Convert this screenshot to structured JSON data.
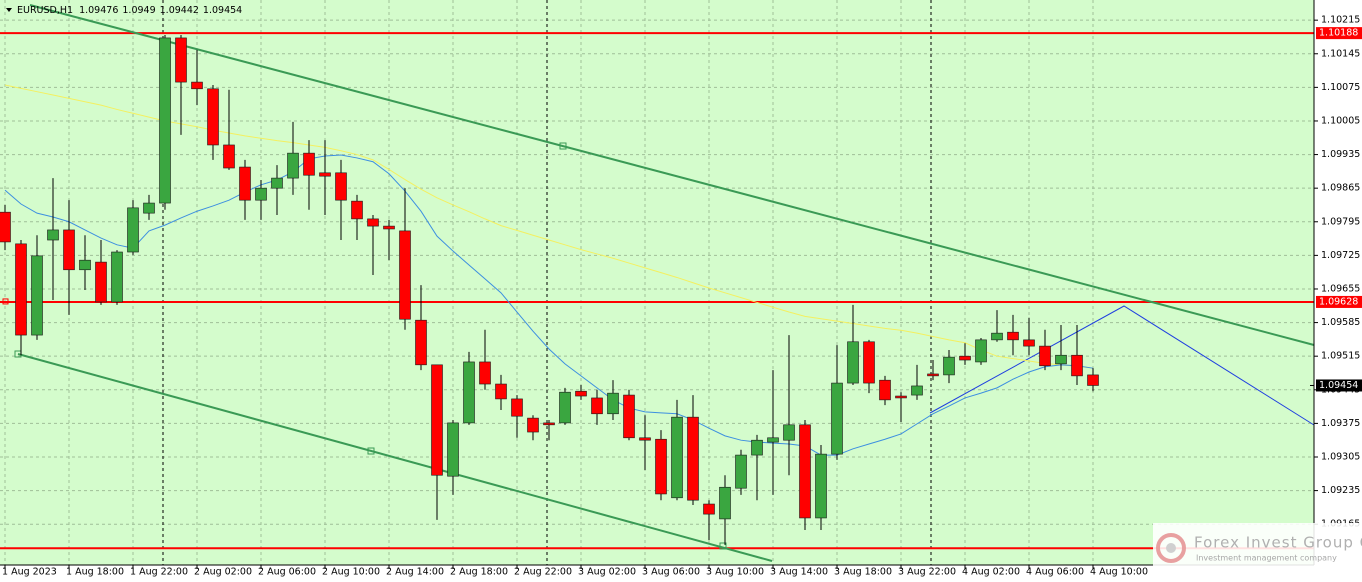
{
  "chart_data": {
    "type": "candlestick",
    "title": "EURUSD,H1",
    "categories": [
      "1 Aug 2023",
      null,
      null,
      null,
      "1 Aug 18:00",
      null,
      null,
      null,
      "1 Aug 22:00",
      null,
      null,
      null,
      "2 Aug 02:00",
      null,
      null,
      null,
      "2 Aug 06:00",
      null,
      null,
      null,
      "2 Aug 10:00",
      null,
      null,
      null,
      "2 Aug 14:00",
      null,
      null,
      null,
      "2 Aug 18:00",
      null,
      null,
      null,
      "2 Aug 22:00",
      null,
      null,
      null,
      "3 Aug 02:00",
      null,
      null,
      null,
      "3 Aug 06:00",
      null,
      null,
      null,
      "3 Aug 10:00",
      null,
      null,
      null,
      "3 Aug 14:00",
      null,
      null,
      null,
      "3 Aug 18:00",
      null,
      null,
      null,
      "3 Aug 22:00",
      null,
      null,
      null,
      "4 Aug 02:00",
      null,
      null,
      null,
      "4 Aug 06:00",
      null,
      null,
      null,
      "4 Aug 10:00"
    ],
    "open": [
      1.09815,
      1.09749,
      1.09559,
      1.09757,
      1.09778,
      1.09695,
      1.09711,
      1.09628,
      1.09732,
      1.09813,
      1.09834,
      1.10178,
      1.10086,
      1.10072,
      1.09955,
      1.09909,
      1.0984,
      1.09865,
      1.09886,
      1.09938,
      1.09897,
      1.09897,
      1.09838,
      1.09801,
      1.09786,
      1.09776,
      1.0959,
      1.09497,
      1.09265,
      1.09376,
      1.09503,
      1.09457,
      1.09426,
      1.09386,
      1.09376,
      1.09376,
      1.09442,
      1.09428,
      1.09395,
      1.09434,
      1.09345,
      1.09342,
      1.0922,
      1.09388,
      1.09207,
      1.09176,
      1.0924,
      1.09309,
      1.09336,
      1.0934,
      1.09372,
      1.09178,
      1.09311,
      1.09459,
      1.09545,
      1.09465,
      1.09432,
      1.09434,
      1.09478,
      1.09476,
      1.09515,
      1.09503,
      1.09549,
      1.09565,
      1.09549,
      1.09536,
      1.09499,
      1.09517,
      1.09476
    ],
    "high": [
      1.0983,
      1.09757,
      1.09767,
      1.09886,
      1.0984,
      1.09767,
      1.09757,
      1.09736,
      1.0984,
      1.09851,
      1.10184,
      1.10184,
      1.10153,
      1.1008,
      1.1007,
      1.09924,
      1.09882,
      1.09913,
      1.10003,
      1.09965,
      1.09965,
      1.09924,
      1.09851,
      1.09809,
      1.09799,
      1.09865,
      1.09663,
      1.09497,
      1.09382,
      1.09524,
      1.0957,
      1.09476,
      1.09434,
      1.09392,
      1.09382,
      1.09449,
      1.09455,
      1.09445,
      1.09465,
      1.09445,
      1.09392,
      1.09361,
      1.09424,
      1.09434,
      1.09215,
      1.09267,
      1.0932,
      1.09351,
      1.09486,
      1.09559,
      1.09382,
      1.0933,
      1.09538,
      1.09622,
      1.09549,
      1.09474,
      1.0944,
      1.09497,
      1.09507,
      1.09528,
      1.09542,
      1.09553,
      1.09611,
      1.09601,
      1.09595,
      1.0957,
      1.0958,
      1.0958,
      1.0949
    ],
    "low": [
      1.09736,
      1.09517,
      1.09549,
      1.09632,
      1.09601,
      1.09653,
      1.09622,
      1.09622,
      1.09726,
      1.09799,
      1.0982,
      1.09976,
      1.10038,
      1.09924,
      1.09903,
      1.09799,
      1.09799,
      1.09809,
      1.09851,
      1.0982,
      1.09809,
      1.09757,
      1.09757,
      1.09684,
      1.09715,
      1.0957,
      1.09486,
      1.09174,
      1.09226,
      1.09372,
      1.09445,
      1.09403,
      1.09345,
      1.0934,
      1.0934,
      1.09372,
      1.09424,
      1.09372,
      1.09382,
      1.0934,
      1.09278,
      1.09215,
      1.09215,
      1.09205,
      1.09132,
      1.09122,
      1.09226,
      1.09215,
      1.09226,
      1.09267,
      1.09153,
      1.09153,
      1.09299,
      1.09455,
      1.09438,
      1.09413,
      1.09378,
      1.09424,
      1.09465,
      1.09459,
      1.09497,
      1.09497,
      1.09545,
      1.09517,
      1.09517,
      1.09486,
      1.09486,
      1.09455,
      1.09442
    ],
    "close": [
      1.09753,
      1.09559,
      1.09724,
      1.09778,
      1.09695,
      1.09715,
      1.09628,
      1.09732,
      1.09824,
      1.09834,
      1.10178,
      1.10086,
      1.10072,
      1.09955,
      1.09907,
      1.0984,
      1.09865,
      1.09886,
      1.09938,
      1.09892,
      1.0989,
      1.0984,
      1.09801,
      1.09786,
      1.0978,
      1.09592,
      1.09497,
      1.09267,
      1.09376,
      1.09503,
      1.09457,
      1.09426,
      1.0939,
      1.09357,
      1.09372,
      1.0944,
      1.09432,
      1.09395,
      1.09438,
      1.09345,
      1.0934,
      1.09228,
      1.09388,
      1.09215,
      1.09186,
      1.09242,
      1.09309,
      1.0934,
      1.09345,
      1.09372,
      1.09178,
      1.09311,
      1.09459,
      1.09545,
      1.09459,
      1.09424,
      1.09428,
      1.09453,
      1.09474,
      1.09513,
      1.09507,
      1.09549,
      1.09563,
      1.09549,
      1.09536,
      1.09495,
      1.09517,
      1.09474,
      1.09454
    ],
    "bull_color": "#3aa640",
    "bear_color": "#ff0000",
    "moving_averages": [
      {
        "color": "#f4f060",
        "values": [
          1.1008,
          1.10073,
          1.10066,
          1.10059,
          1.10052,
          1.10045,
          1.10038,
          1.10029,
          1.10021,
          1.10013,
          1.10005,
          1.09999,
          1.09993,
          1.09986,
          1.0998,
          1.09974,
          1.09969,
          1.09964,
          1.0996,
          1.09955,
          1.0995,
          1.09943,
          1.09935,
          1.09924,
          1.09904,
          1.09883,
          1.09863,
          1.09845,
          1.0983,
          1.09816,
          1.09801,
          1.09787,
          1.09777,
          1.09767,
          1.09757,
          1.09747,
          1.09737,
          1.09728,
          1.09719,
          1.09709,
          1.09699,
          1.09689,
          1.09679,
          1.09668,
          1.09657,
          1.09647,
          1.09637,
          1.09627,
          1.09617,
          1.09607,
          1.09598,
          1.09593,
          1.09588,
          1.09583,
          1.09578,
          1.09573,
          1.09569,
          1.09563,
          1.09556,
          1.09549,
          1.09543,
          1.09528,
          1.09515,
          1.0951,
          1.09505,
          1.095,
          1.09497,
          1.09494,
          1.0949
        ]
      },
      {
        "color": "#3d8fe0",
        "values": [
          1.09861,
          1.09832,
          1.09813,
          1.09805,
          1.09795,
          1.09778,
          1.09761,
          1.09747,
          1.0974,
          1.09776,
          1.09788,
          1.09803,
          1.09817,
          1.09828,
          1.0984,
          1.09857,
          1.09872,
          1.09882,
          1.09899,
          1.09926,
          1.09932,
          1.09934,
          1.09928,
          1.0992,
          1.09895,
          1.09859,
          1.09817,
          1.09765,
          1.09734,
          1.09705,
          1.09676,
          1.09647,
          1.09607,
          1.09567,
          1.0953,
          1.09499,
          1.09474,
          1.09449,
          1.09424,
          1.09407,
          1.09399,
          1.09397,
          1.09395,
          1.09382,
          1.09365,
          1.09349,
          1.0934,
          1.09336,
          1.09334,
          1.09332,
          1.09328,
          1.09309,
          1.09309,
          1.09322,
          1.09332,
          1.09342,
          1.09353,
          1.09374,
          1.09395,
          1.09411,
          1.09428,
          1.09438,
          1.09449,
          1.09467,
          1.09482,
          1.09493,
          1.09497,
          1.09495,
          1.0949
        ]
      }
    ],
    "levels": [
      1.10188,
      1.09628,
      1.09115
    ],
    "level_color": "#ff0000",
    "ylim": [
      1.0908,
      1.10257
    ],
    "yticks": [
      1.10215,
      1.10145,
      1.10075,
      1.10005,
      1.09935,
      1.09865,
      1.09795,
      1.09725,
      1.09655,
      1.09585,
      1.09515,
      1.09445,
      1.09375,
      1.09305,
      1.09235,
      1.09165
    ],
    "grid": true,
    "background": "#d4fccc"
  },
  "watermark": {
    "title": "Forex Invest Group OU",
    "subtitle": "Investment management company"
  }
}
